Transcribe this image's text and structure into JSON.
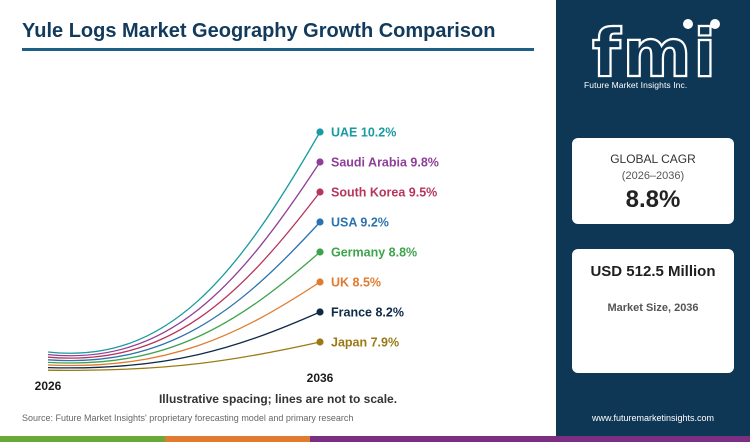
{
  "title": "Yule Logs Market Geography Growth Comparison",
  "chart_data": {
    "type": "line",
    "x": [
      "2026",
      "2036"
    ],
    "xlabel": "",
    "ylabel": "",
    "grid": false,
    "series": [
      {
        "name": "UAE",
        "cagr": 10.2,
        "label": "UAE 10.2%",
        "color": "#1a9aa2"
      },
      {
        "name": "Saudi Arabia",
        "cagr": 9.8,
        "label": "Saudi Arabia 9.8%",
        "color": "#8e3f97"
      },
      {
        "name": "South Korea",
        "cagr": 9.5,
        "label": "South Korea 9.5%",
        "color": "#b7365c"
      },
      {
        "name": "USA",
        "cagr": 9.2,
        "label": "USA 9.2%",
        "color": "#2b73b0"
      },
      {
        "name": "Germany",
        "cagr": 8.8,
        "label": "Germany 8.8%",
        "color": "#3fa34d"
      },
      {
        "name": "UK",
        "cagr": 8.5,
        "label": "UK 8.5%",
        "color": "#e07b30"
      },
      {
        "name": "France",
        "cagr": 8.2,
        "label": "France 8.2%",
        "color": "#0e2a47"
      },
      {
        "name": "Japan",
        "cagr": 7.9,
        "label": "Japan 7.9%",
        "color": "#9a7a14"
      }
    ]
  },
  "note": "Illustrative spacing; lines are not to scale.",
  "source": "Source: Future Market Insights' proprietary forecasting model and primary research",
  "brand": {
    "logo_text": "fmi",
    "tagline": "Future Market Insights Inc."
  },
  "global_cagr": {
    "label": "GLOBAL CAGR",
    "period": "(2026–2036)",
    "value": "8.8%"
  },
  "market_size": {
    "value": "USD 512.5 Million",
    "label": "Market Size, 2036"
  },
  "url": "www.futuremarketinsights.com",
  "colors": {
    "panel": "#0e3756",
    "title": "#123a5c",
    "accent": "#1e5f86"
  },
  "bottom_bar_colors": [
    "#6aa83a",
    "#e07b30",
    "#7a2f82"
  ]
}
